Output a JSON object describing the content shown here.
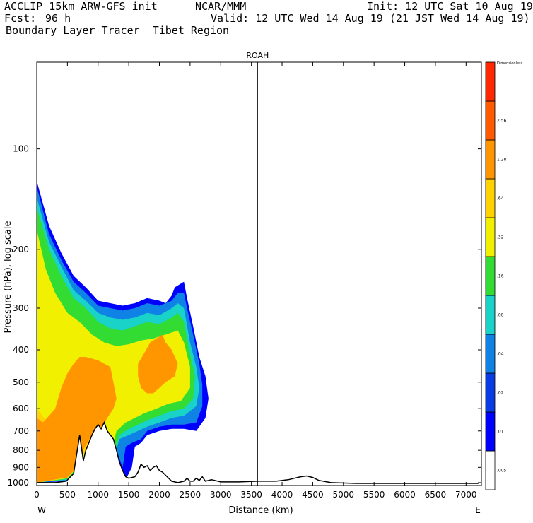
{
  "header": {
    "model": "ACCLIP 15km ARW-GFS init",
    "org": "NCAR/MMM",
    "init": "Init: 12 UTC Sat 10 Aug 19",
    "fcst_label": "Fcst:",
    "fcst_value": "96 h",
    "valid": "Valid: 12 UTC Wed 14 Aug 19 (21 JST Wed 14 Aug 19)",
    "field": "Boundary Layer Tracer  Tibet Region"
  },
  "chart_data": {
    "type": "heatmap",
    "title": "",
    "xlabel": "Distance (km)",
    "ylabel": "Pressure (hPa), log scale",
    "xlim": [
      0,
      7250
    ],
    "ylim": [
      1020,
      55
    ],
    "y_scale": "log",
    "x_ticks": [
      0,
      500,
      1000,
      1500,
      2000,
      2500,
      3000,
      3500,
      4000,
      4500,
      5000,
      5500,
      6000,
      6500,
      7000
    ],
    "y_ticks": [
      100,
      200,
      300,
      400,
      500,
      600,
      700,
      800,
      900,
      1000
    ],
    "x_end_labels": {
      "left": "W",
      "right": "E"
    },
    "marker": {
      "x": 3600,
      "label": "ROAH"
    },
    "colorbar": {
      "levels": [
        ".005",
        ".01",
        ".02",
        ".04",
        ".08",
        ".16",
        ".32",
        ".64",
        "1.28",
        "2.56",
        "Dimensionless"
      ],
      "colors": [
        "#ffffff",
        "#0000ff",
        "#0a3ce6",
        "#0f82e6",
        "#19d2c8",
        "#32dc32",
        "#f0f000",
        "#ffd200",
        "#ff9600",
        "#ff5a00",
        "#ff2800"
      ]
    },
    "terrain": [
      [
        0,
        1000
      ],
      [
        300,
        1000
      ],
      [
        480,
        990
      ],
      [
        600,
        940
      ],
      [
        660,
        800
      ],
      [
        700,
        720
      ],
      [
        760,
        860
      ],
      [
        800,
        800
      ],
      [
        850,
        760
      ],
      [
        900,
        720
      ],
      [
        950,
        690
      ],
      [
        1000,
        670
      ],
      [
        1050,
        690
      ],
      [
        1100,
        660
      ],
      [
        1150,
        700
      ],
      [
        1200,
        720
      ],
      [
        1250,
        740
      ],
      [
        1300,
        800
      ],
      [
        1350,
        870
      ],
      [
        1400,
        920
      ],
      [
        1450,
        960
      ],
      [
        1500,
        970
      ],
      [
        1600,
        960
      ],
      [
        1650,
        930
      ],
      [
        1700,
        880
      ],
      [
        1750,
        900
      ],
      [
        1800,
        890
      ],
      [
        1850,
        920
      ],
      [
        1900,
        900
      ],
      [
        1950,
        890
      ],
      [
        2000,
        920
      ],
      [
        2050,
        930
      ],
      [
        2100,
        950
      ],
      [
        2200,
        990
      ],
      [
        2300,
        1000
      ],
      [
        2400,
        990
      ],
      [
        2450,
        970
      ],
      [
        2500,
        990
      ],
      [
        2550,
        990
      ],
      [
        2600,
        970
      ],
      [
        2650,
        985
      ],
      [
        2700,
        960
      ],
      [
        2750,
        990
      ],
      [
        2850,
        980
      ],
      [
        3000,
        995
      ],
      [
        3300,
        995
      ],
      [
        3600,
        990
      ],
      [
        3900,
        990
      ],
      [
        4100,
        980
      ],
      [
        4300,
        960
      ],
      [
        4400,
        955
      ],
      [
        4500,
        965
      ],
      [
        4600,
        985
      ],
      [
        4800,
        1000
      ],
      [
        5200,
        1005
      ],
      [
        6000,
        1005
      ],
      [
        7200,
        1005
      ]
    ],
    "tracer_bands": [
      {
        "color": "#0000ff",
        "contour": [
          [
            0,
            125
          ],
          [
            200,
            170
          ],
          [
            400,
            205
          ],
          [
            600,
            240
          ],
          [
            800,
            260
          ],
          [
            1000,
            285
          ],
          [
            1200,
            290
          ],
          [
            1400,
            295
          ],
          [
            1600,
            290
          ],
          [
            1800,
            280
          ],
          [
            2000,
            285
          ],
          [
            2100,
            290
          ],
          [
            2200,
            275
          ],
          [
            2250,
            260
          ],
          [
            2400,
            250
          ],
          [
            2450,
            280
          ],
          [
            2550,
            340
          ],
          [
            2650,
            420
          ],
          [
            2750,
            480
          ],
          [
            2800,
            560
          ],
          [
            2750,
            640
          ],
          [
            2600,
            700
          ],
          [
            2400,
            690
          ],
          [
            2200,
            690
          ],
          [
            2000,
            700
          ],
          [
            1800,
            720
          ],
          [
            1700,
            760
          ],
          [
            1600,
            780
          ],
          [
            1550,
            900
          ],
          [
            1450,
            980
          ],
          [
            1350,
            960
          ],
          [
            1300,
            820
          ],
          [
            1100,
            700
          ],
          [
            800,
            880
          ],
          [
            500,
            990
          ],
          [
            0,
            1000
          ]
        ]
      },
      {
        "color": "#0f82e6",
        "contour": [
          [
            0,
            130
          ],
          [
            200,
            180
          ],
          [
            400,
            215
          ],
          [
            600,
            250
          ],
          [
            800,
            270
          ],
          [
            1000,
            295
          ],
          [
            1200,
            300
          ],
          [
            1400,
            305
          ],
          [
            1600,
            300
          ],
          [
            1800,
            290
          ],
          [
            2000,
            295
          ],
          [
            2200,
            285
          ],
          [
            2300,
            270
          ],
          [
            2400,
            270
          ],
          [
            2450,
            300
          ],
          [
            2550,
            360
          ],
          [
            2650,
            440
          ],
          [
            2700,
            510
          ],
          [
            2700,
            590
          ],
          [
            2600,
            660
          ],
          [
            2400,
            670
          ],
          [
            2200,
            670
          ],
          [
            2000,
            680
          ],
          [
            1800,
            700
          ],
          [
            1700,
            740
          ],
          [
            1550,
            760
          ],
          [
            1450,
            780
          ],
          [
            1400,
            900
          ],
          [
            1300,
            800
          ],
          [
            1100,
            700
          ],
          [
            800,
            870
          ],
          [
            500,
            985
          ],
          [
            0,
            1000
          ]
        ]
      },
      {
        "color": "#19d2c8",
        "contour": [
          [
            0,
            140
          ],
          [
            200,
            190
          ],
          [
            400,
            225
          ],
          [
            600,
            265
          ],
          [
            800,
            285
          ],
          [
            1000,
            310
          ],
          [
            1200,
            320
          ],
          [
            1400,
            325
          ],
          [
            1600,
            320
          ],
          [
            1800,
            310
          ],
          [
            2000,
            315
          ],
          [
            2200,
            300
          ],
          [
            2300,
            290
          ],
          [
            2400,
            300
          ],
          [
            2500,
            380
          ],
          [
            2600,
            450
          ],
          [
            2650,
            520
          ],
          [
            2600,
            590
          ],
          [
            2400,
            630
          ],
          [
            2200,
            640
          ],
          [
            2000,
            660
          ],
          [
            1800,
            680
          ],
          [
            1650,
            700
          ],
          [
            1500,
            720
          ],
          [
            1350,
            740
          ],
          [
            1300,
            790
          ],
          [
            1100,
            700
          ],
          [
            800,
            860
          ],
          [
            500,
            980
          ],
          [
            0,
            1000
          ]
        ]
      },
      {
        "color": "#32dc32",
        "contour": [
          [
            0,
            150
          ],
          [
            200,
            200
          ],
          [
            400,
            240
          ],
          [
            600,
            280
          ],
          [
            800,
            300
          ],
          [
            1000,
            330
          ],
          [
            1200,
            345
          ],
          [
            1400,
            350
          ],
          [
            1600,
            340
          ],
          [
            1800,
            330
          ],
          [
            2000,
            335
          ],
          [
            2200,
            320
          ],
          [
            2300,
            310
          ],
          [
            2400,
            330
          ],
          [
            2500,
            410
          ],
          [
            2580,
            480
          ],
          [
            2550,
            560
          ],
          [
            2400,
            600
          ],
          [
            2200,
            610
          ],
          [
            2000,
            630
          ],
          [
            1800,
            650
          ],
          [
            1650,
            670
          ],
          [
            1500,
            690
          ],
          [
            1350,
            720
          ],
          [
            1300,
            780
          ],
          [
            1100,
            690
          ],
          [
            800,
            850
          ],
          [
            500,
            975
          ],
          [
            0,
            1000
          ]
        ]
      },
      {
        "color": "#f0f000",
        "contour": [
          [
            0,
            175
          ],
          [
            150,
            230
          ],
          [
            300,
            270
          ],
          [
            500,
            310
          ],
          [
            700,
            330
          ],
          [
            900,
            360
          ],
          [
            1100,
            380
          ],
          [
            1300,
            390
          ],
          [
            1500,
            385
          ],
          [
            1700,
            375
          ],
          [
            1900,
            370
          ],
          [
            2100,
            360
          ],
          [
            2300,
            350
          ],
          [
            2400,
            380
          ],
          [
            2500,
            450
          ],
          [
            2500,
            520
          ],
          [
            2350,
            570
          ],
          [
            2150,
            580
          ],
          [
            1950,
            600
          ],
          [
            1750,
            620
          ],
          [
            1600,
            640
          ],
          [
            1450,
            660
          ],
          [
            1300,
            700
          ],
          [
            1250,
            760
          ],
          [
            1100,
            690
          ],
          [
            800,
            840
          ],
          [
            500,
            970
          ],
          [
            0,
            1000
          ]
        ]
      },
      {
        "color": "#ffd200",
        "contour": [
          [
            0,
            600
          ],
          [
            120,
            640
          ],
          [
            250,
            700
          ],
          [
            400,
            760
          ],
          [
            550,
            740
          ],
          [
            700,
            660
          ],
          [
            900,
            640
          ],
          [
            1000,
            620
          ],
          [
            950,
            720
          ],
          [
            700,
            860
          ],
          [
            500,
            960
          ],
          [
            0,
            1000
          ]
        ]
      },
      {
        "color": "#ff9600",
        "contour": [
          [
            0,
            640
          ],
          [
            100,
            660
          ],
          [
            200,
            630
          ],
          [
            300,
            600
          ],
          [
            400,
            520
          ],
          [
            500,
            470
          ],
          [
            600,
            440
          ],
          [
            700,
            420
          ],
          [
            800,
            420
          ],
          [
            900,
            425
          ],
          [
            1000,
            430
          ],
          [
            1100,
            440
          ],
          [
            1200,
            450
          ],
          [
            1250,
            500
          ],
          [
            1300,
            560
          ],
          [
            1250,
            600
          ],
          [
            1150,
            640
          ],
          [
            1050,
            690
          ],
          [
            900,
            720
          ],
          [
            750,
            800
          ],
          [
            650,
            900
          ],
          [
            500,
            965
          ],
          [
            0,
            1000
          ]
        ]
      },
      {
        "color": "#ff9600",
        "contour": [
          [
            1650,
            440
          ],
          [
            1750,
            410
          ],
          [
            1850,
            380
          ],
          [
            1950,
            370
          ],
          [
            2050,
            360
          ],
          [
            2100,
            380
          ],
          [
            2200,
            400
          ],
          [
            2300,
            440
          ],
          [
            2250,
            480
          ],
          [
            2100,
            500
          ],
          [
            2000,
            520
          ],
          [
            1900,
            540
          ],
          [
            1800,
            540
          ],
          [
            1700,
            520
          ],
          [
            1650,
            480
          ]
        ]
      }
    ]
  }
}
